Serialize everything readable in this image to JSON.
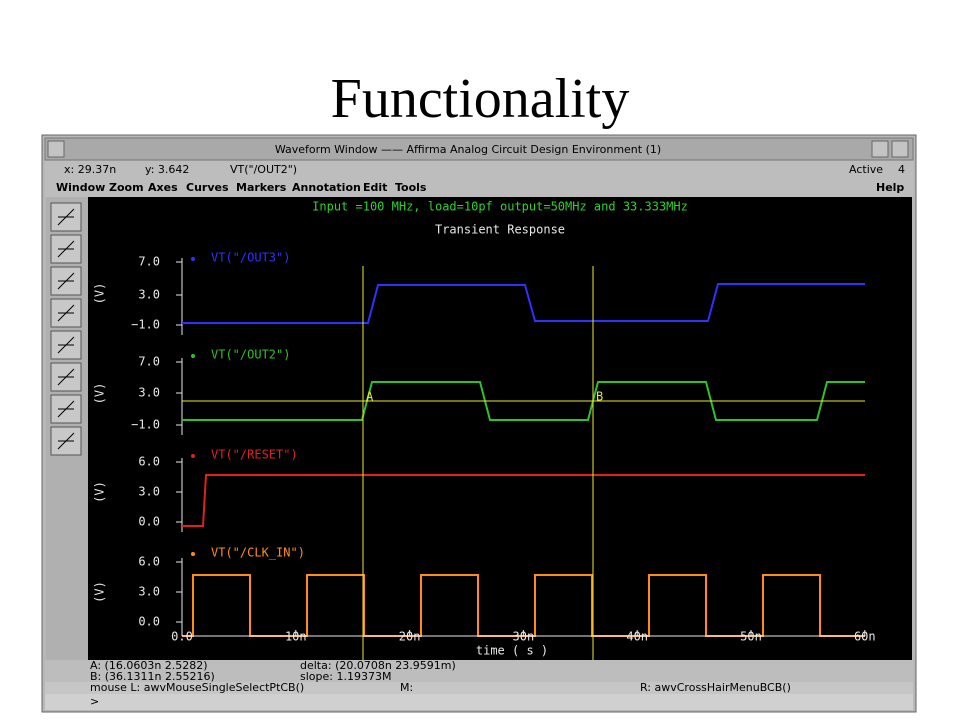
{
  "slide_title": "Functionality",
  "window": {
    "title": "Waveform Window —— Affirma Analog Circuit Design Environment (1)",
    "status": {
      "x": "x: 29.37n",
      "y": "y: 3.642",
      "signal": "VT(\"/OUT2\")",
      "mode": "Active",
      "count": "4"
    },
    "menu": [
      "Window",
      "Zoom",
      "Axes",
      "Curves",
      "Markers",
      "Annotation",
      "Edit",
      "Tools"
    ],
    "help": "Help"
  },
  "plot": {
    "subtitle": "Input =100 MHz, load=10pf output=50MHz and 33.333MHz",
    "title": "Transient Response",
    "strips": [
      {
        "label": "VT(\"/OUT3\")",
        "unit": "(V)",
        "ticks": [
          "7.0",
          "3.0",
          "−1.0"
        ]
      },
      {
        "label": "VT(\"/OUT2\")",
        "unit": "(V)",
        "ticks": [
          "7.0",
          "3.0",
          "−1.0"
        ]
      },
      {
        "label": "VT(\"/RESET\")",
        "unit": "(V)",
        "ticks": [
          "6.0",
          "3.0",
          "0.0"
        ]
      },
      {
        "label": "VT(\"/CLK_IN\")",
        "unit": "(V)",
        "ticks": [
          "6.0",
          "3.0",
          "0.0"
        ]
      }
    ],
    "x_ticks": [
      "0.0",
      "10n",
      "20n",
      "30n",
      "40n",
      "50n",
      "60n"
    ],
    "x_label": "time ( s )",
    "cursors": [
      "A",
      "B"
    ]
  },
  "info": {
    "a": "A: (16.0603n 2.5282)",
    "delta": "delta: (20.0708n 23.9591m)",
    "b": "B: (36.1311n 2.55216)",
    "slope": "slope: 1.19373M"
  },
  "mouse_bar": {
    "left": "mouse L: awvMouseSingleSelectPtCB()",
    "middle": "M:",
    "right": "R: awvCrossHairMenuBCB()"
  },
  "prompt": ">"
}
